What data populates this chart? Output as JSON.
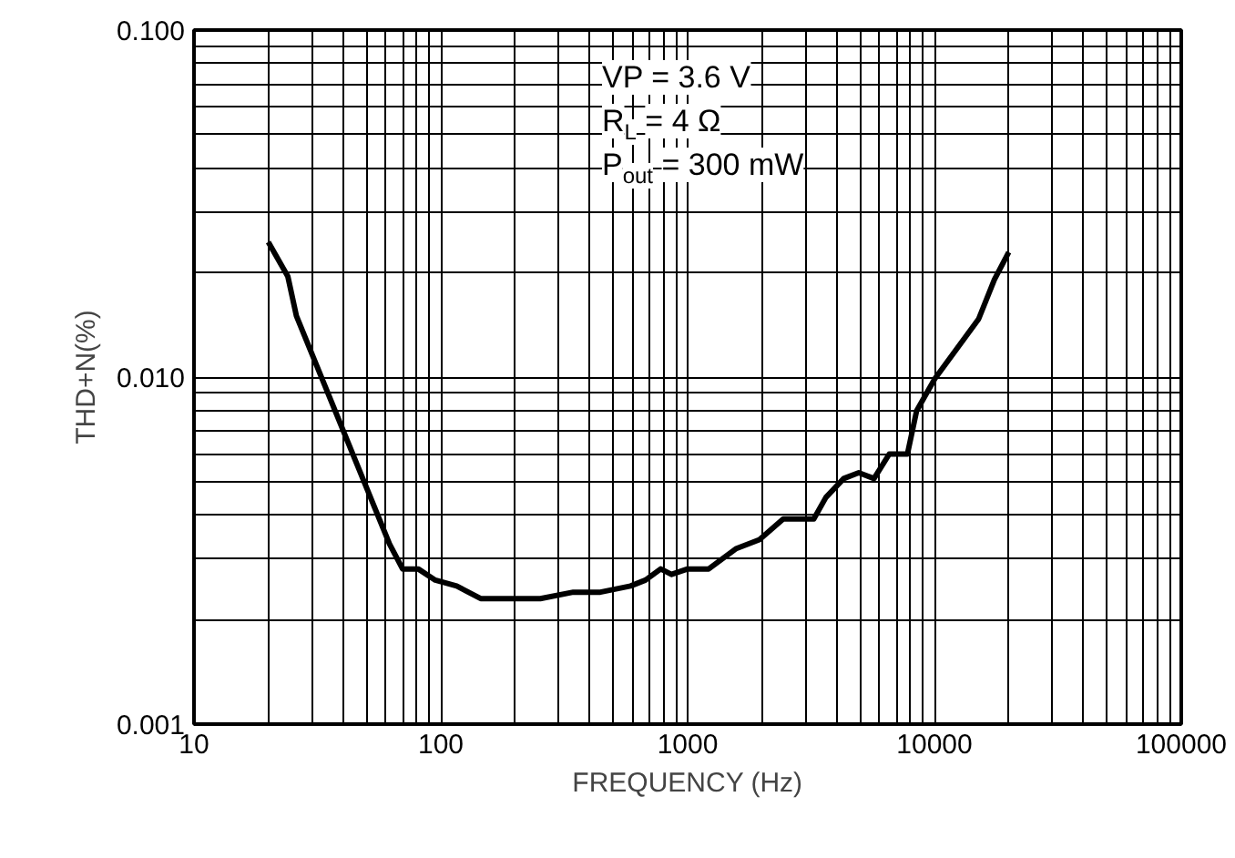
{
  "chart_data": {
    "type": "line",
    "xlabel": "FREQUENCY (Hz)",
    "ylabel": "THD+N(%)",
    "log": "xy",
    "grid": true,
    "marker": "none",
    "line_style": "solid",
    "annotations": [
      "VP = 3.6 V",
      "R$_{L}$ = 4 Ω",
      "P$_{out}$ = 300 mW"
    ],
    "xlim": [
      10,
      100000
    ],
    "ylim": [
      0.001,
      0.1
    ],
    "xticks": [
      10,
      100,
      1000,
      10000,
      100000,
      {
        "value": 20,
        "label": null
      },
      {
        "value": 30,
        "label": null
      },
      {
        "value": 40,
        "label": null
      },
      {
        "value": 50,
        "label": null
      },
      {
        "value": 60,
        "label": null
      },
      {
        "value": 70,
        "label": null
      },
      {
        "value": 80,
        "label": null
      },
      {
        "value": 90,
        "label": null
      },
      {
        "value": 200,
        "label": null
      },
      {
        "value": 300,
        "label": null
      },
      {
        "value": 400,
        "label": null
      },
      {
        "value": 500,
        "label": null
      },
      {
        "value": 600,
        "label": null
      },
      {
        "value": 700,
        "label": null
      },
      {
        "value": 800,
        "label": null
      },
      {
        "value": 900,
        "label": null
      },
      {
        "value": 2000,
        "label": null
      },
      {
        "value": 3000,
        "label": null
      },
      {
        "value": 4000,
        "label": null
      },
      {
        "value": 5000,
        "label": null
      },
      {
        "value": 6000,
        "label": null
      },
      {
        "value": 7000,
        "label": null
      },
      {
        "value": 8000,
        "label": null
      },
      {
        "value": 9000,
        "label": null
      },
      {
        "value": 20000,
        "label": null
      },
      {
        "value": 30000,
        "label": null
      },
      {
        "value": 40000,
        "label": null
      },
      {
        "value": 50000,
        "label": null
      },
      {
        "value": 60000,
        "label": null
      },
      {
        "value": 70000,
        "label": null
      },
      {
        "value": 80000,
        "label": null
      },
      {
        "value": 90000,
        "label": null
      }
    ],
    "yticks": [
      0.001,
      {
        "value": 0.01,
        "label": "0.010"
      },
      {
        "value": 0.1,
        "label": "0.100"
      },
      {
        "value": 0.002,
        "label": null
      },
      {
        "value": 0.003,
        "label": null
      },
      {
        "value": 0.004,
        "label": null
      },
      {
        "value": 0.005,
        "label": null
      },
      {
        "value": 0.006,
        "label": null
      },
      {
        "value": 0.007,
        "label": null
      },
      {
        "value": 0.008,
        "label": null
      },
      {
        "value": 0.009,
        "label": null
      },
      {
        "value": 0.02,
        "label": null
      },
      {
        "value": 0.03,
        "label": null
      },
      {
        "value": 0.04,
        "label": null
      },
      {
        "value": 0.05,
        "label": null
      },
      {
        "value": 0.06,
        "label": null
      },
      {
        "value": 0.07,
        "label": null
      },
      {
        "value": 0.08,
        "label": null
      },
      {
        "value": 0.09,
        "label": null
      }
    ],
    "series": [
      {
        "color": "#000000",
        "x": [
          20,
          24,
          26,
          62,
          70,
          81,
          95,
          116,
          145,
          197,
          220,
          253,
          344,
          443,
          587,
          675,
          778,
          860,
          1000,
          1217,
          1567,
          1954,
          2440,
          3245,
          3632,
          4290,
          4935,
          5690,
          6560,
          7770,
          8470,
          10040,
          15100,
          17500,
          20000
        ],
        "values": [
          0.0245,
          0.0195,
          0.015,
          0.0033,
          0.0028,
          0.0028,
          0.0026,
          0.0025,
          0.0023,
          0.0023,
          0.0023,
          0.0023,
          0.0024,
          0.0024,
          0.0025,
          0.0026,
          0.0028,
          0.0027,
          0.0028,
          0.0028,
          0.0032,
          0.0034,
          0.0039,
          0.0039,
          0.0045,
          0.0051,
          0.0053,
          0.0051,
          0.006,
          0.006,
          0.008,
          0.0099,
          0.0147,
          0.0191,
          0.0229
        ]
      }
    ]
  }
}
